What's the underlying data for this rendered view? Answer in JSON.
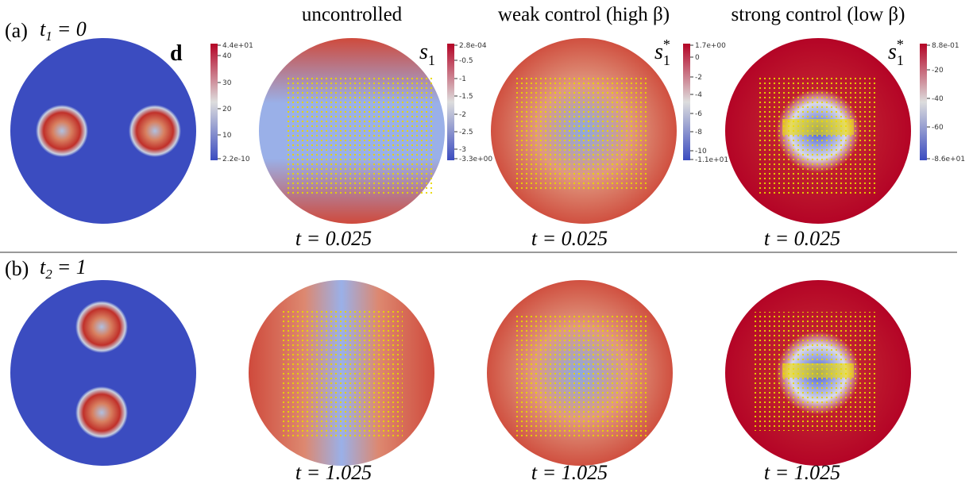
{
  "rows": [
    {
      "label": "(a)",
      "time": {
        "var": "t",
        "sub": "1",
        "eq": "= 0"
      }
    },
    {
      "label": "(b)",
      "time": {
        "var": "t",
        "sub": "2",
        "eq": "= 1"
      }
    }
  ],
  "columns": [
    {
      "field": "d"
    },
    {
      "title": "uncontrolled",
      "field": {
        "name": "s",
        "sub": "1"
      },
      "times": [
        "t = 0.025",
        "t = 1.025"
      ]
    },
    {
      "title": "weak control (high β)",
      "field": {
        "name": "s",
        "sub": "1",
        "sup": "*"
      },
      "times": [
        "t = 0.025",
        "t = 1.025"
      ]
    },
    {
      "title": "strong control (low β)",
      "field": {
        "name": "s",
        "sub": "1",
        "sup": "*"
      },
      "times": [
        "t = 0.025",
        "t = 1.025"
      ]
    }
  ],
  "colorbars": [
    {
      "ticks": [
        "4.4e+01",
        "40",
        "30",
        "20",
        "10",
        "2.2e-10"
      ]
    },
    {
      "ticks": [
        "2.8e-04",
        "-0.5",
        "-1",
        "-1.5",
        "-2",
        "-2.5",
        "-3",
        "-3.3e+00"
      ]
    },
    {
      "ticks": [
        "1.7e+00",
        "0",
        "-2",
        "-4",
        "-6",
        "-8",
        "-10",
        "-1.1e+01"
      ]
    },
    {
      "ticks": [
        "8.8e-01",
        "-20",
        "-40",
        "-60",
        "-8.6e+01"
      ]
    }
  ]
}
